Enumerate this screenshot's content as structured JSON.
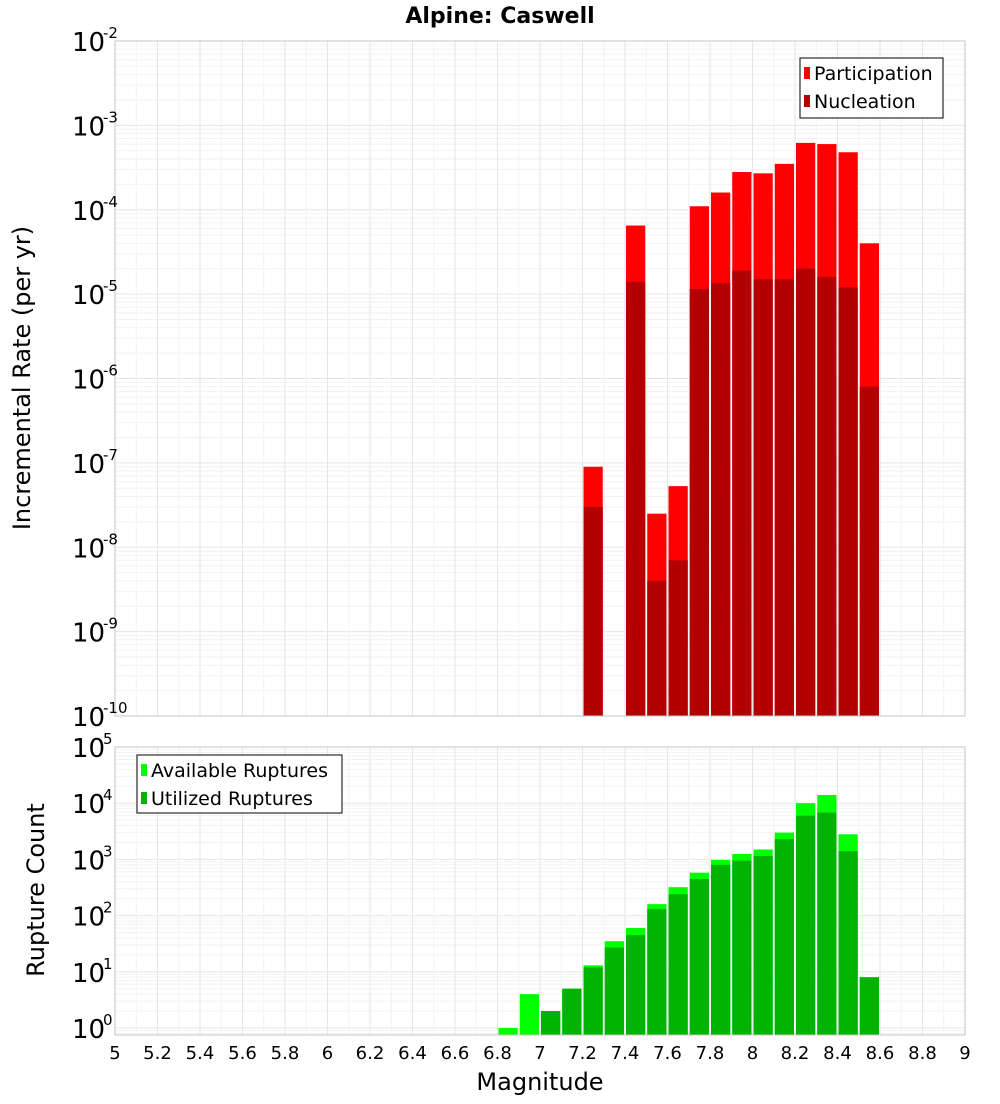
{
  "chart_data": [
    {
      "type": "bar",
      "title": "Alpine: Caswell",
      "xlabel": "",
      "ylabel": "Incremental Rate (per yr)",
      "y_scale": "log",
      "xlim": [
        5,
        9
      ],
      "ylim": [
        1e-10,
        0.01
      ],
      "y_tick_exponents": [
        "-10",
        "-9",
        "-8",
        "-7",
        "-6",
        "-5",
        "-4",
        "-3",
        "-2"
      ],
      "grid": true,
      "legend_position": "top-right",
      "bin_width": 0.1,
      "x": [
        7.25,
        7.45,
        7.55,
        7.65,
        7.75,
        7.85,
        7.95,
        8.05,
        8.15,
        8.25,
        8.35,
        8.45,
        8.55
      ],
      "series": [
        {
          "name": "Participation",
          "color": "#ff0000",
          "values": [
            9e-08,
            6.5e-05,
            2.5e-08,
            5.3e-08,
            0.00011,
            0.00016,
            0.00028,
            0.00027,
            0.00035,
            0.00062,
            0.0006,
            0.00048,
            4e-05
          ]
        },
        {
          "name": "Nucleation",
          "color": "#b30000",
          "values": [
            3e-08,
            1.4e-05,
            4e-09,
            7e-09,
            1.15e-05,
            1.35e-05,
            1.9e-05,
            1.5e-05,
            1.5e-05,
            2e-05,
            1.6e-05,
            1.2e-05,
            8e-07
          ]
        }
      ]
    },
    {
      "type": "bar",
      "title": "",
      "xlabel": "Magnitude",
      "ylabel": "Rupture Count",
      "y_scale": "log",
      "xlim": [
        5,
        9
      ],
      "ylim": [
        0.75,
        100000
      ],
      "y_tick_exponents": [
        "0",
        "1",
        "2",
        "3",
        "4",
        "5"
      ],
      "x_ticks": [
        "5",
        "5.2",
        "5.4",
        "5.6",
        "5.8",
        "6",
        "6.2",
        "6.4",
        "6.6",
        "6.8",
        "7",
        "7.2",
        "7.4",
        "7.6",
        "7.8",
        "8",
        "8.2",
        "8.4",
        "8.6",
        "8.8",
        "9"
      ],
      "grid": true,
      "legend_position": "top-left",
      "bin_width": 0.1,
      "x": [
        6.85,
        6.95,
        7.05,
        7.15,
        7.25,
        7.35,
        7.45,
        7.55,
        7.65,
        7.75,
        7.85,
        7.95,
        8.05,
        8.15,
        8.25,
        8.35,
        8.45,
        8.55
      ],
      "series": [
        {
          "name": "Available Ruptures",
          "color": "#00ff00",
          "values": [
            1,
            4,
            2,
            5,
            13,
            35,
            60,
            160,
            320,
            580,
            980,
            1250,
            1500,
            3000,
            10000,
            14000,
            2800,
            8
          ]
        },
        {
          "name": "Utilized Ruptures",
          "color": "#00b300",
          "values": [
            0,
            0,
            2,
            5,
            12,
            27,
            45,
            130,
            240,
            450,
            800,
            950,
            1150,
            2300,
            6000,
            6800,
            1400,
            8
          ]
        }
      ]
    }
  ]
}
